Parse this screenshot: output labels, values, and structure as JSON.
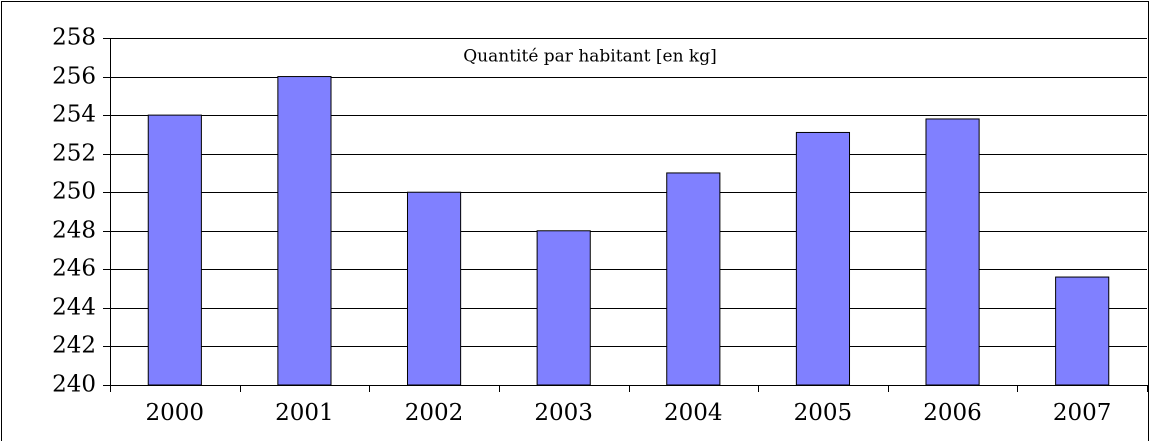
{
  "chart_data": {
    "type": "bar",
    "title": "Quantité par habitant [en kg]",
    "categories": [
      "2000",
      "2001",
      "2002",
      "2003",
      "2004",
      "2005",
      "2006",
      "2007"
    ],
    "values": [
      254,
      256,
      250,
      248,
      251,
      253.1,
      253.8,
      245.6
    ],
    "color": "#8080ff",
    "ylim": [
      240,
      258
    ],
    "yticks": [
      240,
      242,
      244,
      246,
      248,
      250,
      252,
      254,
      256,
      258
    ],
    "grid": true
  }
}
